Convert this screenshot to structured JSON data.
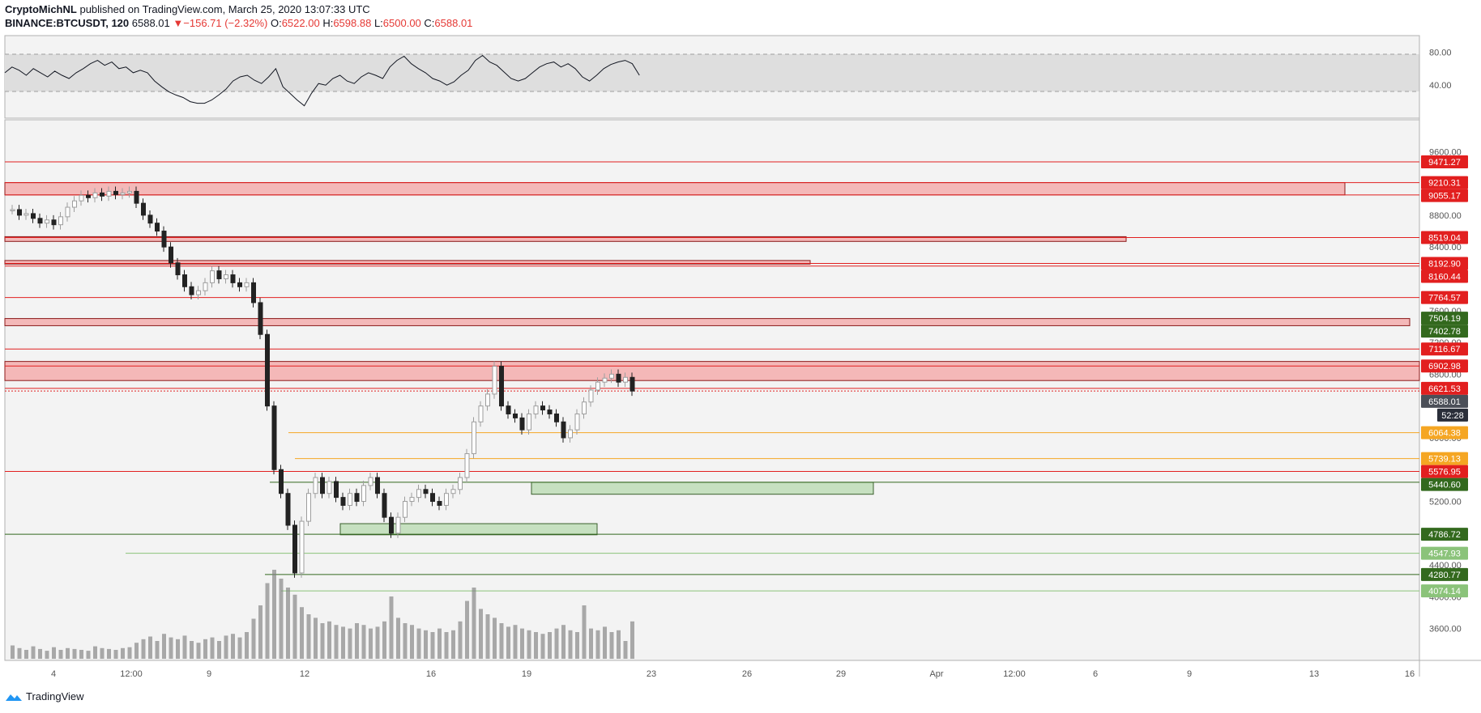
{
  "header": {
    "author": "CryptoMichNL",
    "published": "published on TradingView.com, March 25, 2020 13:07:33 UTC",
    "symbol": "BINANCE:BTCUSDT, 120",
    "last": "6588.01",
    "change": "−156.71 (−2.32%)",
    "o_label": "O:",
    "o": "6522.00",
    "h_label": "H:",
    "h": "6598.88",
    "l_label": "L:",
    "l": "6500.00",
    "c_label": "C:",
    "c": "6588.01"
  },
  "footer": {
    "brand": "TradingView"
  },
  "colors": {
    "red": "#e21f1f",
    "zone_red": "#f4b8b8",
    "green_zone": "#c6e0c0",
    "dark_green": "#33691e",
    "light_green": "#8bc37a",
    "orange": "#f5a623",
    "candle": "#808080",
    "plot_bg": "#f3f3f3"
  },
  "chart_data": [
    {
      "type": "line",
      "name": "rsi",
      "y_ticks": [
        "80.00",
        "40.00"
      ],
      "ylim": [
        0,
        100
      ],
      "band": [
        30,
        70
      ],
      "x": [
        0,
        4,
        8,
        12,
        16,
        20,
        24,
        28,
        32,
        36,
        40,
        44,
        48,
        52,
        56,
        60,
        64,
        68,
        72,
        76,
        80,
        84,
        88,
        92,
        96,
        100,
        104,
        108,
        112,
        116,
        120,
        124,
        128,
        132,
        136,
        140,
        144,
        148,
        152,
        156,
        160,
        164,
        168,
        172,
        176,
        180,
        184,
        188,
        192,
        196,
        200,
        204,
        208,
        212,
        216,
        220,
        224,
        228,
        232,
        236,
        240,
        244,
        248,
        252,
        256,
        260,
        264,
        268,
        272,
        276,
        280,
        284,
        288,
        292,
        296,
        300,
        304,
        308,
        312,
        316,
        320,
        324,
        328,
        332,
        336,
        340,
        344,
        348,
        352,
        356
      ],
      "values": [
        55,
        62,
        58,
        52,
        60,
        55,
        50,
        57,
        52,
        48,
        55,
        60,
        66,
        70,
        64,
        68,
        60,
        62,
        55,
        58,
        55,
        45,
        38,
        32,
        28,
        25,
        20,
        18,
        18,
        22,
        28,
        35,
        45,
        50,
        52,
        46,
        42,
        50,
        60,
        38,
        30,
        22,
        15,
        30,
        42,
        40,
        48,
        52,
        45,
        42,
        50,
        55,
        52,
        48,
        62,
        70,
        75,
        66,
        60,
        55,
        48,
        45,
        40,
        44,
        52,
        58,
        70,
        76,
        68,
        64,
        56,
        48,
        45,
        48,
        55,
        62,
        66,
        68,
        62,
        66,
        60,
        50,
        45,
        52,
        60,
        65,
        68,
        70,
        66,
        52
      ]
    },
    {
      "type": "candlestick",
      "name": "BTCUSDT",
      "x_ticks": [
        "4",
        "12:00",
        "9",
        "12",
        "16",
        "19",
        "23",
        "26",
        "29",
        "Apr",
        "12:00",
        "6",
        "9",
        "13",
        "16"
      ],
      "y_ticks": [
        "9600.00",
        "8800.00",
        "8400.00",
        "7600.00",
        "7200.00",
        "6800.00",
        "6000.00",
        "5200.00",
        "4400.00",
        "4000.00",
        "3600.00"
      ],
      "ylim": [
        3200,
        10000
      ],
      "close_path": [
        8870,
        8800,
        8820,
        8760,
        8700,
        8740,
        8680,
        8780,
        8900,
        8980,
        9050,
        9020,
        9080,
        9040,
        9100,
        9060,
        9080,
        9100,
        8950,
        8800,
        8700,
        8600,
        8400,
        8200,
        8050,
        7900,
        7800,
        7850,
        7950,
        8100,
        8000,
        8050,
        7950,
        7900,
        7950,
        7700,
        7300,
        6400,
        5600,
        5300,
        4900,
        4300,
        4950,
        5300,
        5500,
        5300,
        5450,
        5250,
        5150,
        5300,
        5200,
        5400,
        5500,
        5300,
        5000,
        4800,
        5000,
        5200,
        5250,
        5350,
        5300,
        5200,
        5150,
        5300,
        5350,
        5500,
        5800,
        6200,
        6400,
        6550,
        6900,
        6400,
        6300,
        6250,
        6100,
        6300,
        6400,
        6350,
        6300,
        6200,
        6000,
        6100,
        6300,
        6450,
        6600,
        6700,
        6750,
        6800,
        6700,
        6760,
        6588
      ],
      "volume_path": [
        15,
        12,
        10,
        14,
        11,
        9,
        13,
        10,
        12,
        11,
        10,
        9,
        14,
        12,
        11,
        10,
        12,
        13,
        18,
        22,
        25,
        20,
        28,
        24,
        22,
        26,
        20,
        18,
        22,
        24,
        20,
        26,
        28,
        24,
        30,
        45,
        60,
        85,
        100,
        90,
        80,
        72,
        58,
        50,
        46,
        40,
        42,
        38,
        36,
        34,
        40,
        38,
        34,
        36,
        42,
        70,
        46,
        40,
        38,
        34,
        32,
        30,
        34,
        30,
        32,
        42,
        65,
        80,
        56,
        50,
        46,
        40,
        36,
        38,
        34,
        32,
        30,
        28,
        30,
        34,
        38,
        32,
        30,
        60,
        34,
        32,
        36,
        30,
        32,
        20,
        42
      ],
      "horizontal_levels": [
        {
          "label": "9471.27",
          "kind": "red_line"
        },
        {
          "label": "9210.31",
          "kind": "red_line"
        },
        {
          "label": "9055.17",
          "kind": "red_line"
        },
        {
          "label": "8519.04",
          "kind": "red_line"
        },
        {
          "label": "8192.90",
          "kind": "red_line"
        },
        {
          "label": "8160.44",
          "kind": "red_line"
        },
        {
          "label": "7764.57",
          "kind": "red_line"
        },
        {
          "label": "7504.19",
          "kind": "green_label"
        },
        {
          "label": "7402.78",
          "kind": "green_label"
        },
        {
          "label": "7116.67",
          "kind": "red_line"
        },
        {
          "label": "6902.98",
          "kind": "red_line"
        },
        {
          "label": "6621.53",
          "kind": "red_line"
        },
        {
          "label": "6588.01",
          "kind": "last_price"
        },
        {
          "label": "52:28",
          "kind": "countdown"
        },
        {
          "label": "6064.38",
          "kind": "orange_line"
        },
        {
          "label": "5739.13",
          "kind": "orange_line"
        },
        {
          "label": "5576.95",
          "kind": "red_line"
        },
        {
          "label": "5440.60",
          "kind": "green_line"
        },
        {
          "label": "4786.72",
          "kind": "dark_green_line"
        },
        {
          "label": "4547.93",
          "kind": "light_green_line"
        },
        {
          "label": "4280.77",
          "kind": "dark_green_line"
        },
        {
          "label": "4074.14",
          "kind": "light_green_line"
        }
      ],
      "zones": [
        {
          "kind": "resistance",
          "from": 9055,
          "to": 9210
        },
        {
          "kind": "resistance",
          "from": 8470,
          "to": 8530
        },
        {
          "kind": "resistance",
          "from": 8185,
          "to": 8230
        },
        {
          "kind": "resistance",
          "from": 7410,
          "to": 7500
        },
        {
          "kind": "resistance",
          "from": 6720,
          "to": 6960
        },
        {
          "kind": "support",
          "from": 5290,
          "to": 5440
        },
        {
          "kind": "support",
          "from": 4780,
          "to": 4920
        }
      ]
    }
  ]
}
